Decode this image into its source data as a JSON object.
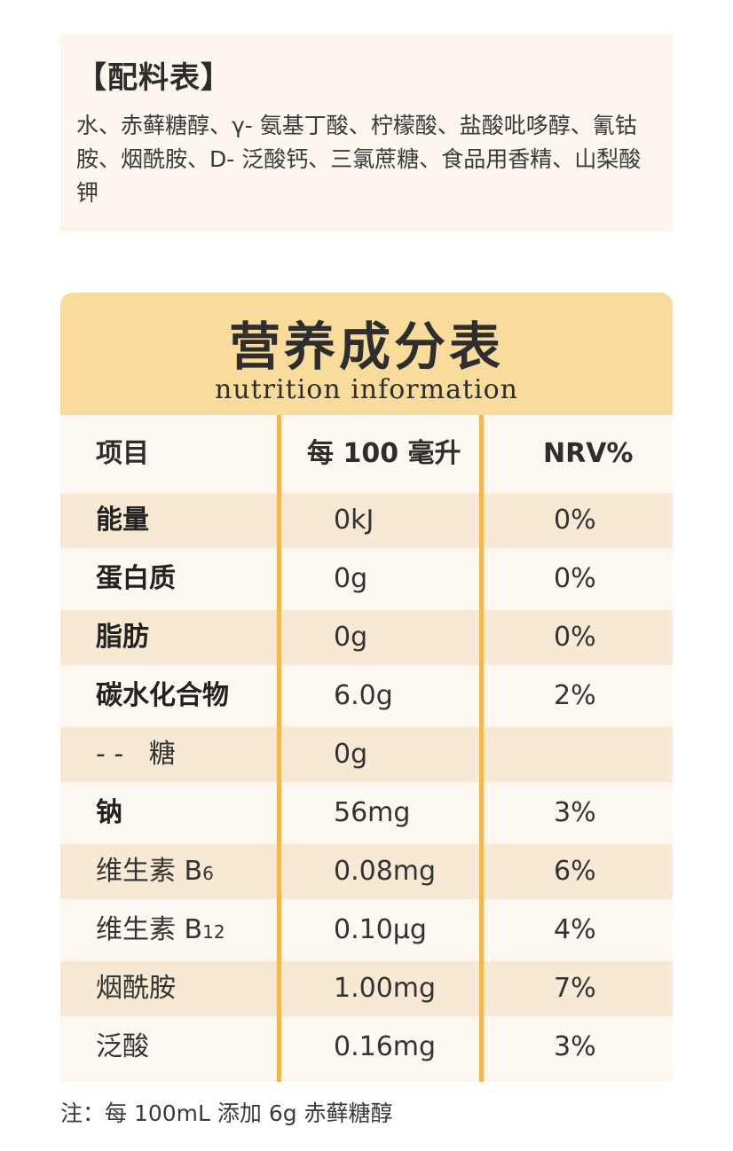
{
  "ingredients": {
    "title": "【配料表】",
    "text": "水、赤藓糖醇、γ- 氨基丁酸、柠檬酸、盐酸吡哆醇、氰钴胺、烟酰胺、D- 泛酸钙、三氯蔗糖、食品用香精、山梨酸钾"
  },
  "nutrition": {
    "title": "营养成分表",
    "subtitle": "nutrition information",
    "headers": [
      "项目",
      "每 100 毫升",
      "NRV%"
    ],
    "rows": [
      {
        "name": "能量",
        "amount": "0kJ",
        "nrv": "0%"
      },
      {
        "name": "蛋白质",
        "amount": "0g",
        "nrv": "0%"
      },
      {
        "name": "脂肪",
        "amount": "0g",
        "nrv": "0%"
      },
      {
        "name": "碳水化合物",
        "amount": "6.0g",
        "nrv": "2%"
      },
      {
        "name": "- -   糖",
        "amount": "0g",
        "nrv": ""
      },
      {
        "name": "钠",
        "amount": "56mg",
        "nrv": "3%"
      },
      {
        "name": "维生素 B",
        "name_sub": "6",
        "amount": "0.08mg",
        "nrv": "6%"
      },
      {
        "name": "维生素 B",
        "name_sub": "12",
        "amount": "0.10μg",
        "nrv": "4%"
      },
      {
        "name": "烟酰胺",
        "amount": "1.00mg",
        "nrv": "7%"
      },
      {
        "name": "泛酸",
        "amount": "0.16mg",
        "nrv": "3%"
      }
    ]
  },
  "note": "注：每 100mL 添加 6g 赤藓糖醇"
}
